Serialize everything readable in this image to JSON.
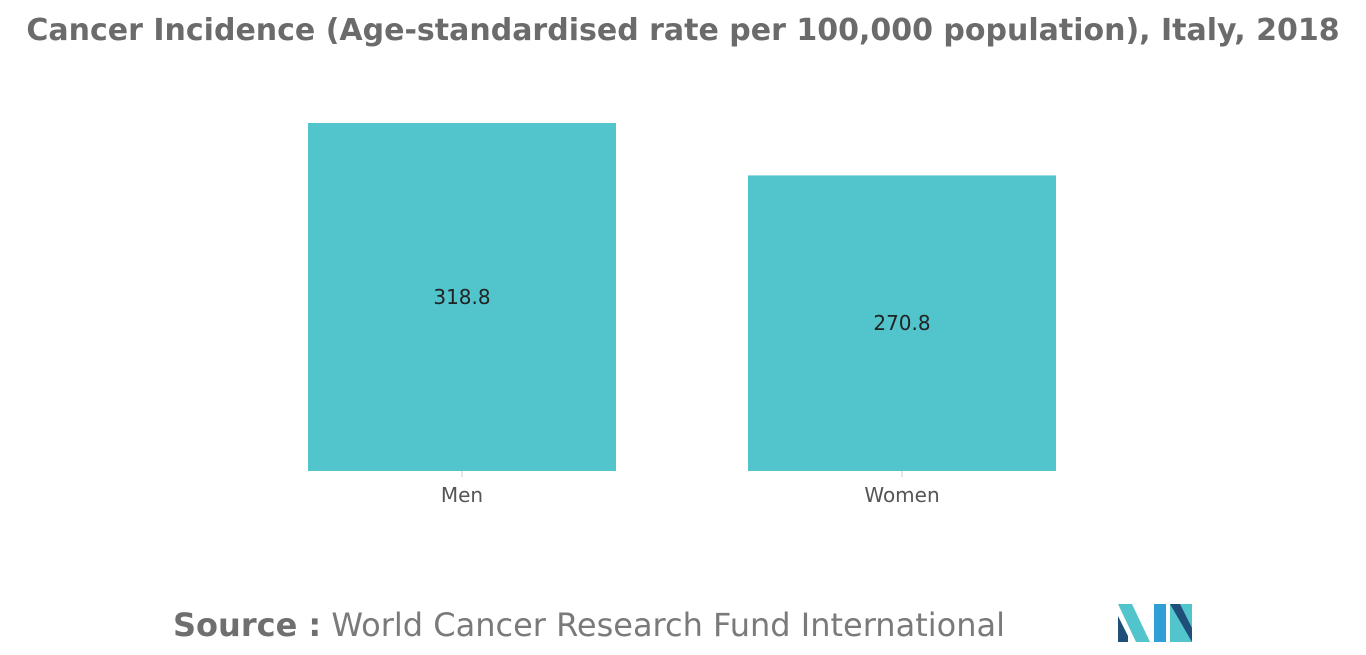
{
  "title": "Cancer Incidence (Age-standardised rate per 100,000 population), Italy, 2018",
  "source": {
    "label": "Source :",
    "text": "World Cancer Research Fund International"
  },
  "logo": {
    "icon": "mordor-intelligence-logo",
    "colors": [
      "#1f4e79",
      "#2f9fd6",
      "#52c4cb"
    ]
  },
  "chart_data": {
    "type": "bar",
    "categories": [
      "Men",
      "Women"
    ],
    "values": [
      318.8,
      270.8
    ],
    "value_labels": [
      "318.8",
      "270.8"
    ],
    "xlabel": "",
    "ylabel": "",
    "ylim": [
      0,
      318.8
    ],
    "grid": false,
    "legend": "none",
    "bar_color": "#52c4cb"
  }
}
